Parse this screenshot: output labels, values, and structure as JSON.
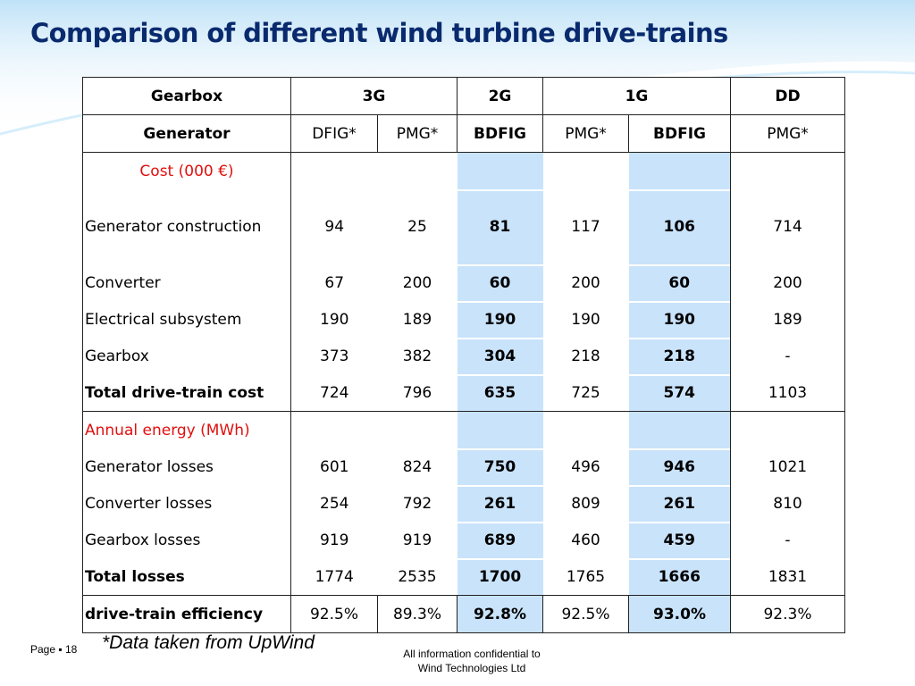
{
  "slide": {
    "title": "Comparison of different wind turbine drive-trains",
    "colors": {
      "title": "#0a2a6e",
      "highlight": "#c9e3fb",
      "section_label": "#e0100f"
    }
  },
  "table": {
    "header": {
      "label": "Gearbox",
      "groups": [
        "3G",
        "2G",
        "1G",
        "DD"
      ]
    },
    "generator_row": {
      "label": "Generator",
      "types": [
        "DFIG*",
        "PMG*",
        "BDFIG",
        "PMG*",
        "BDFIG",
        "PMG*"
      ]
    },
    "cost_section": {
      "title": "Cost (000 €)",
      "rows": [
        {
          "label": "Generator construction",
          "values": [
            "94",
            "25",
            "81",
            "117",
            "106",
            "714"
          ]
        },
        {
          "label": "Converter",
          "values": [
            "67",
            "200",
            "60",
            "200",
            "60",
            "200"
          ]
        },
        {
          "label": "Electrical subsystem",
          "values": [
            "190",
            "189",
            "190",
            "190",
            "190",
            "189"
          ]
        },
        {
          "label": "Gearbox",
          "values": [
            "373",
            "382",
            "304",
            "218",
            "218",
            "-"
          ]
        }
      ],
      "total": {
        "label": "Total drive-train cost",
        "values": [
          "724",
          "796",
          "635",
          "725",
          "574",
          "1103"
        ]
      }
    },
    "energy_section": {
      "title": "Annual energy (MWh)",
      "rows": [
        {
          "label": "Generator losses",
          "values": [
            "601",
            "824",
            "750",
            "496",
            "946",
            "1021"
          ]
        },
        {
          "label": "Converter losses",
          "values": [
            "254",
            "792",
            "261",
            "809",
            "261",
            "810"
          ]
        },
        {
          "label": "Gearbox losses",
          "values": [
            "919",
            "919",
            "689",
            "460",
            "459",
            "-"
          ]
        }
      ],
      "total": {
        "label": "Total losses",
        "values": [
          "1774",
          "2535",
          "1700",
          "1765",
          "1666",
          "1831"
        ]
      }
    },
    "efficiency_row": {
      "label": "drive-train efficiency",
      "values": [
        "92.5%",
        "89.3%",
        "92.8%",
        "92.5%",
        "93.0%",
        "92.3%"
      ]
    }
  },
  "footer": {
    "page_label": "Page ▪ 18",
    "note": "*Data taken from UpWind",
    "confidential_line1": "All information confidential to",
    "confidential_line2": "Wind Technologies Ltd"
  }
}
